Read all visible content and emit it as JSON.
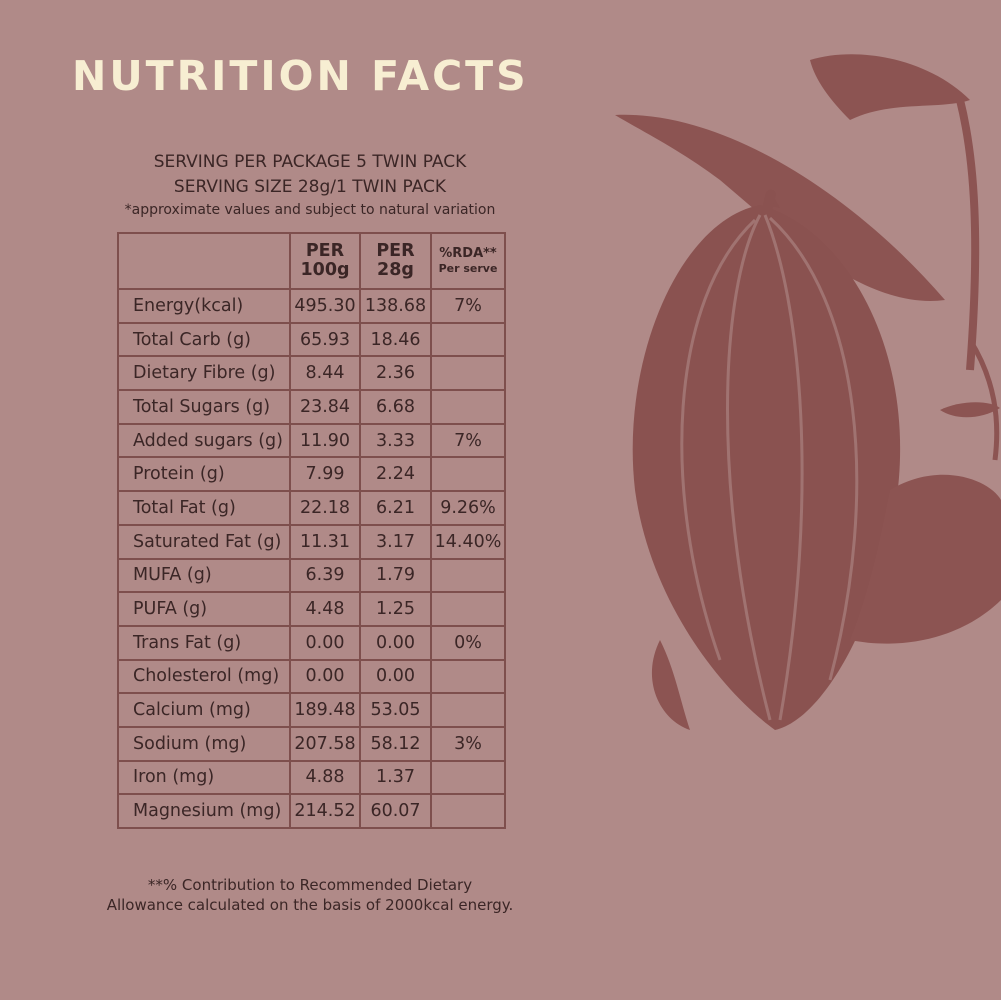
{
  "header": {
    "title": "NUTRITION FACTS",
    "serving_per_package": "SERVING PER PACKAGE 5 TWIN PACK",
    "serving_size": "SERVING SIZE 28g/1 TWIN PACK",
    "note": "*approximate values and subject to natural variation"
  },
  "table": {
    "columns": [
      {
        "line1": "PER",
        "line2": "100g"
      },
      {
        "line1": "PER",
        "line2": "28g"
      },
      {
        "line1": "%RDA**",
        "line2": "Per serve"
      }
    ],
    "rows": [
      {
        "nutrient": "Energy(kcal)",
        "per_100g": "495.30",
        "per_28g": "138.68",
        "rda": "7%"
      },
      {
        "nutrient": "Total Carb (g)",
        "per_100g": "65.93",
        "per_28g": "18.46"
      },
      {
        "nutrient": "Dietary Fibre (g)",
        "per_100g": "8.44",
        "per_28g": "2.36"
      },
      {
        "nutrient": "Total Sugars (g)",
        "per_100g": "23.84",
        "per_28g": "6.68"
      },
      {
        "nutrient": "Added sugars (g)",
        "per_100g": "11.90",
        "per_28g": "3.33",
        "rda": "7%"
      },
      {
        "nutrient": "Protein (g)",
        "per_100g": "7.99",
        "per_28g": "2.24"
      },
      {
        "nutrient": "Total Fat (g)",
        "per_100g": "22.18",
        "per_28g": "6.21",
        "rda": "9.26%"
      },
      {
        "nutrient": "Saturated Fat (g)",
        "per_100g": "11.31",
        "per_28g": "3.17",
        "rda": "14.40%"
      },
      {
        "nutrient": "MUFA (g)",
        "per_100g": "6.39",
        "per_28g": "1.79"
      },
      {
        "nutrient": "PUFA (g)",
        "per_100g": "4.48",
        "per_28g": "1.25"
      },
      {
        "nutrient": "Trans Fat (g)",
        "per_100g": "0.00",
        "per_28g": "0.00",
        "rda": "0%"
      },
      {
        "nutrient": "Cholesterol (mg)",
        "per_100g": "0.00",
        "per_28g": "0.00"
      },
      {
        "nutrient": "Calcium (mg)",
        "per_100g": "189.48",
        "per_28g": "53.05"
      },
      {
        "nutrient": "Sodium (mg)",
        "per_100g": "207.58",
        "per_28g": "58.12",
        "rda": "3%"
      },
      {
        "nutrient": "Iron (mg)",
        "per_100g": "4.88",
        "per_28g": "1.37"
      },
      {
        "nutrient": "Magnesium (mg)",
        "per_100g": "214.52",
        "per_28g": "60.07"
      }
    ]
  },
  "footer": {
    "line1": "**% Contribution to Recommended Dietary",
    "line2": "Allowance calculated on the basis of 2000kcal energy."
  }
}
